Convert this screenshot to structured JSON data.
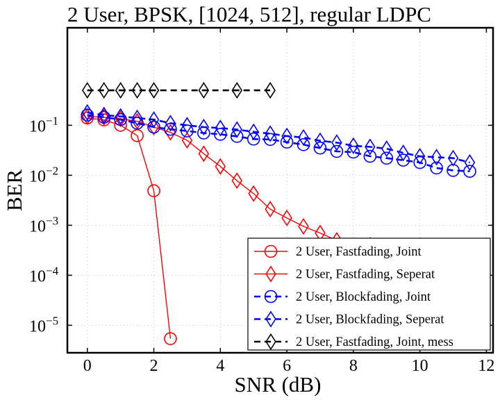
{
  "chart_data": {
    "type": "line",
    "title": "2 User, BPSK, [1024, 512], regular LDPC",
    "xlabel": "SNR (dB)",
    "ylabel": "BER",
    "xlim": [
      -0.6,
      12.2
    ],
    "ylim_log10": [
      -5.55,
      0.95
    ],
    "yscale": "log",
    "grid": true,
    "legend_position": "lower-right",
    "x_ticks": [
      {
        "value": 0,
        "label": "0"
      },
      {
        "value": 2,
        "label": "2"
      },
      {
        "value": 4,
        "label": "4"
      },
      {
        "value": 6,
        "label": "6"
      },
      {
        "value": 8,
        "label": "8"
      },
      {
        "value": 10,
        "label": "10"
      },
      {
        "value": 12,
        "label": "12"
      }
    ],
    "y_ticks": [
      {
        "exp": -1,
        "base": "10",
        "sup": "−1"
      },
      {
        "exp": -2,
        "base": "10",
        "sup": "−2"
      },
      {
        "exp": -3,
        "base": "10",
        "sup": "−3"
      },
      {
        "exp": -4,
        "base": "10",
        "sup": "−4"
      },
      {
        "exp": -5,
        "base": "10",
        "sup": "−5"
      }
    ],
    "series": [
      {
        "name": "2 User, Fastfading, Joint",
        "color": "#ff0000",
        "marker": "circle",
        "dash": "solid",
        "x": [
          0,
          0.5,
          1,
          1.5,
          2,
          2.5
        ],
        "y": [
          0.14,
          0.128,
          0.1,
          0.062,
          0.0049,
          5.4e-06
        ]
      },
      {
        "name": "2 User, Fastfading, Seperat",
        "color": "#ff0000",
        "marker": "diamond",
        "dash": "solid",
        "x": [
          0,
          0.5,
          1,
          1.5,
          2,
          2.5,
          3,
          3.5,
          4,
          4.5,
          5,
          5.5,
          6,
          6.5,
          7,
          7.5,
          8,
          8.5,
          9,
          9.5,
          10,
          10.5,
          11,
          11.5
        ],
        "y": [
          0.15,
          0.145,
          0.135,
          0.12,
          0.092,
          0.072,
          0.05,
          0.027,
          0.015,
          0.0078,
          0.0043,
          0.0021,
          0.0014,
          0.00095,
          0.0007,
          0.0005,
          0.00039,
          0.0004,
          0.00037,
          0.00028,
          0.00028,
          0.00027,
          0.00029,
          0.0003
        ]
      },
      {
        "name": "2 User, Blockfading, Joint",
        "color": "#0000ff",
        "marker": "circle",
        "dash": "dashed",
        "x": [
          0,
          0.5,
          1,
          1.5,
          2,
          2.5,
          3,
          3.5,
          4,
          4.5,
          5,
          5.5,
          6,
          6.5,
          7,
          7.5,
          8,
          8.5,
          9,
          9.5,
          10,
          10.5,
          11,
          11.5
        ],
        "y": [
          0.16,
          0.145,
          0.13,
          0.11,
          0.092,
          0.083,
          0.077,
          0.07,
          0.066,
          0.06,
          0.053,
          0.052,
          0.046,
          0.041,
          0.035,
          0.03,
          0.029,
          0.024,
          0.022,
          0.02,
          0.018,
          0.014,
          0.0125,
          0.012
        ]
      },
      {
        "name": "2 User, Blockfading, Seperat",
        "color": "#0000ff",
        "marker": "diamond",
        "dash": "dashed",
        "x": [
          0,
          0.5,
          1,
          1.5,
          2,
          2.5,
          3,
          3.5,
          4,
          4.5,
          5,
          5.5,
          6,
          6.5,
          7,
          7.5,
          8,
          8.5,
          9,
          9.5,
          10,
          10.5,
          11,
          11.5
        ],
        "y": [
          0.18,
          0.16,
          0.15,
          0.14,
          0.13,
          0.11,
          0.1,
          0.092,
          0.088,
          0.082,
          0.074,
          0.068,
          0.061,
          0.057,
          0.049,
          0.045,
          0.039,
          0.037,
          0.034,
          0.028,
          0.024,
          0.023,
          0.022,
          0.018
        ]
      },
      {
        "name": "2 User, Fastfading, Joint, mess",
        "color": "#000000",
        "marker": "diamond",
        "dash": "dashed",
        "x": [
          0,
          0.5,
          1,
          1.5,
          2,
          3.5,
          4.5,
          5.5
        ],
        "y": [
          0.5,
          0.5,
          0.5,
          0.5,
          0.5,
          0.5,
          0.5,
          0.5
        ]
      }
    ]
  }
}
